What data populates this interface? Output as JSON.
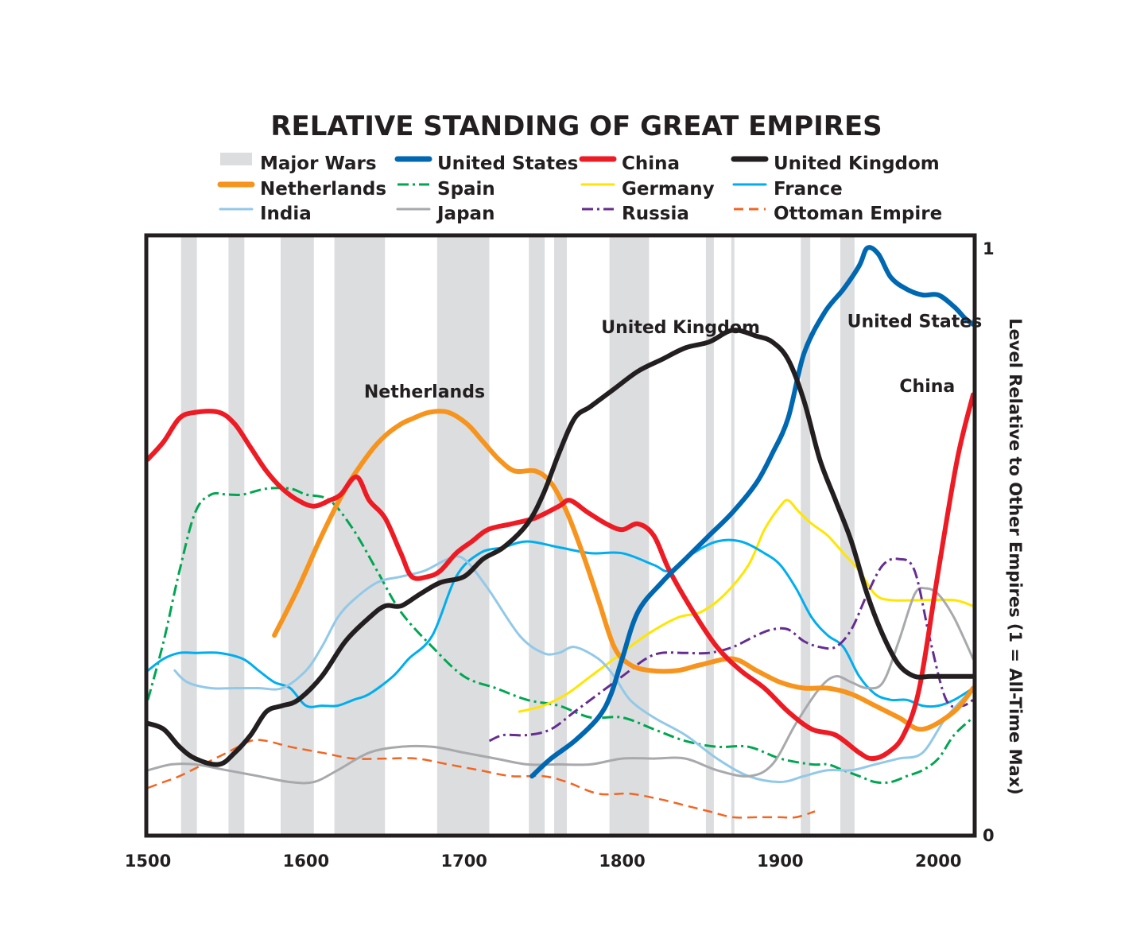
{
  "chart_data": {
    "type": "line",
    "title": "RELATIVE STANDING OF GREAT EMPIRES",
    "ylabel": "Level Relative to Other Empires (1 = All-Time Max)",
    "xlabel": "",
    "xlim": [
      1500,
      2022
    ],
    "ylim": [
      0,
      1
    ],
    "x_ticks": [
      "1500",
      "1600",
      "1700",
      "1800",
      "1900",
      "2000"
    ],
    "y_ticks": [
      "0",
      "1"
    ],
    "legend": {
      "position": "top",
      "major_wars_label": "Major Wars"
    },
    "major_wars": [
      [
        1521,
        1531
      ],
      [
        1551,
        1561
      ],
      [
        1584,
        1605
      ],
      [
        1618,
        1650
      ],
      [
        1683,
        1716
      ],
      [
        1741,
        1751
      ],
      [
        1757,
        1765
      ],
      [
        1792,
        1817
      ],
      [
        1853,
        1858
      ],
      [
        1869,
        1871
      ],
      [
        1913,
        1919
      ],
      [
        1938,
        1947
      ]
    ],
    "series": [
      {
        "name": "Netherlands",
        "color": "#f7941d",
        "style": "solid",
        "width": 6,
        "x": [
          1580,
          1595,
          1610,
          1625,
          1640,
          1650,
          1660,
          1668,
          1678,
          1690,
          1702,
          1712,
          1722,
          1732,
          1745,
          1755,
          1765,
          1775,
          1785,
          1795,
          1805,
          1818,
          1835,
          1850,
          1870,
          1885,
          1900,
          1915,
          1930,
          1945,
          1960,
          1975,
          1990,
          2010,
          2022
        ],
        "y": [
          0.34,
          0.42,
          0.51,
          0.59,
          0.65,
          0.68,
          0.7,
          0.71,
          0.72,
          0.72,
          0.7,
          0.67,
          0.64,
          0.62,
          0.62,
          0.6,
          0.55,
          0.48,
          0.4,
          0.32,
          0.29,
          0.28,
          0.28,
          0.29,
          0.3,
          0.28,
          0.26,
          0.25,
          0.25,
          0.24,
          0.22,
          0.2,
          0.18,
          0.21,
          0.25
        ]
      },
      {
        "name": "China",
        "color": "#ed1c24",
        "style": "solid",
        "width": 6,
        "x": [
          1500,
          1510,
          1520,
          1530,
          1545,
          1555,
          1565,
          1575,
          1585,
          1595,
          1605,
          1615,
          1622,
          1632,
          1640,
          1650,
          1660,
          1667,
          1677,
          1685,
          1695,
          1705,
          1715,
          1730,
          1745,
          1760,
          1767,
          1778,
          1790,
          1800,
          1810,
          1820,
          1830,
          1845,
          1860,
          1875,
          1890,
          1905,
          1920,
          1935,
          1950,
          1958,
          1968,
          1978,
          1988,
          2000,
          2012,
          2022
        ],
        "y": [
          0.64,
          0.67,
          0.71,
          0.72,
          0.72,
          0.7,
          0.66,
          0.62,
          0.59,
          0.57,
          0.56,
          0.57,
          0.58,
          0.61,
          0.57,
          0.54,
          0.48,
          0.44,
          0.44,
          0.45,
          0.48,
          0.5,
          0.52,
          0.53,
          0.54,
          0.56,
          0.57,
          0.55,
          0.53,
          0.52,
          0.53,
          0.51,
          0.45,
          0.38,
          0.32,
          0.28,
          0.25,
          0.21,
          0.18,
          0.17,
          0.14,
          0.13,
          0.14,
          0.17,
          0.25,
          0.45,
          0.64,
          0.75
        ]
      },
      {
        "name": "United States",
        "color": "#0067b1",
        "style": "solid",
        "width": 6,
        "x": [
          1743,
          1755,
          1770,
          1785,
          1793,
          1800,
          1810,
          1825,
          1840,
          1855,
          1870,
          1885,
          1895,
          1905,
          1915,
          1928,
          1940,
          1950,
          1955,
          1962,
          1970,
          1980,
          1990,
          2000,
          2010,
          2017,
          2022
        ],
        "y": [
          0.1,
          0.13,
          0.16,
          0.2,
          0.24,
          0.3,
          0.38,
          0.43,
          0.47,
          0.51,
          0.55,
          0.6,
          0.65,
          0.71,
          0.82,
          0.89,
          0.93,
          0.97,
          1.0,
          0.99,
          0.95,
          0.93,
          0.92,
          0.92,
          0.9,
          0.88,
          0.87
        ]
      },
      {
        "name": "United Kingdom",
        "color": "#231f20",
        "style": "solid",
        "width": 6,
        "x": [
          1500,
          1510,
          1520,
          1530,
          1545,
          1555,
          1565,
          1575,
          1585,
          1595,
          1610,
          1625,
          1640,
          1650,
          1660,
          1672,
          1685,
          1700,
          1712,
          1725,
          1740,
          1750,
          1760,
          1770,
          1780,
          1795,
          1810,
          1825,
          1840,
          1855,
          1870,
          1885,
          1895,
          1905,
          1915,
          1925,
          1935,
          1945,
          1955,
          1965,
          1975,
          1985,
          1995,
          2005,
          2015,
          2022
        ],
        "y": [
          0.19,
          0.18,
          0.15,
          0.13,
          0.12,
          0.14,
          0.17,
          0.21,
          0.22,
          0.23,
          0.27,
          0.33,
          0.37,
          0.39,
          0.39,
          0.41,
          0.43,
          0.44,
          0.47,
          0.49,
          0.53,
          0.58,
          0.65,
          0.71,
          0.73,
          0.76,
          0.79,
          0.81,
          0.83,
          0.84,
          0.86,
          0.85,
          0.84,
          0.81,
          0.74,
          0.64,
          0.57,
          0.5,
          0.41,
          0.34,
          0.29,
          0.27,
          0.27,
          0.27,
          0.27,
          0.27
        ]
      },
      {
        "name": "Spain",
        "color": "#00a651",
        "style": "dashdot",
        "width": 3,
        "x": [
          1500,
          1510,
          1520,
          1530,
          1540,
          1550,
          1560,
          1575,
          1590,
          1600,
          1615,
          1630,
          1645,
          1660,
          1680,
          1700,
          1720,
          1740,
          1760,
          1780,
          1800,
          1820,
          1840,
          1860,
          1880,
          1900,
          1920,
          1930,
          1940,
          1950,
          1960,
          1970,
          1980,
          1990,
          2000,
          2010,
          2022
        ],
        "y": [
          0.23,
          0.33,
          0.45,
          0.55,
          0.58,
          0.58,
          0.58,
          0.59,
          0.59,
          0.58,
          0.57,
          0.52,
          0.45,
          0.38,
          0.32,
          0.27,
          0.25,
          0.23,
          0.22,
          0.2,
          0.2,
          0.18,
          0.16,
          0.15,
          0.15,
          0.13,
          0.12,
          0.12,
          0.11,
          0.1,
          0.09,
          0.09,
          0.1,
          0.11,
          0.13,
          0.17,
          0.2
        ]
      },
      {
        "name": "Germany",
        "color": "#ffe600",
        "style": "solid",
        "width": 3,
        "x": [
          1735,
          1750,
          1765,
          1780,
          1795,
          1815,
          1835,
          1850,
          1865,
          1880,
          1890,
          1900,
          1905,
          1912,
          1920,
          1930,
          1940,
          1950,
          1960,
          1970,
          1990,
          2010,
          2022
        ],
        "y": [
          0.21,
          0.22,
          0.24,
          0.27,
          0.3,
          0.34,
          0.37,
          0.38,
          0.41,
          0.46,
          0.52,
          0.56,
          0.57,
          0.55,
          0.53,
          0.51,
          0.48,
          0.45,
          0.41,
          0.4,
          0.4,
          0.4,
          0.39
        ]
      },
      {
        "name": "France",
        "color": "#00aeef",
        "style": "solid",
        "width": 3,
        "x": [
          1500,
          1510,
          1520,
          1530,
          1545,
          1560,
          1570,
          1580,
          1590,
          1600,
          1610,
          1620,
          1630,
          1640,
          1655,
          1665,
          1680,
          1695,
          1710,
          1725,
          1740,
          1760,
          1780,
          1800,
          1820,
          1830,
          1845,
          1860,
          1875,
          1890,
          1900,
          1910,
          1920,
          1930,
          1940,
          1950,
          1960,
          1970,
          1980,
          1990,
          2000,
          2010,
          2022
        ],
        "y": [
          0.28,
          0.3,
          0.31,
          0.31,
          0.31,
          0.3,
          0.28,
          0.26,
          0.25,
          0.22,
          0.22,
          0.22,
          0.23,
          0.24,
          0.27,
          0.3,
          0.34,
          0.44,
          0.48,
          0.49,
          0.5,
          0.49,
          0.48,
          0.48,
          0.46,
          0.45,
          0.48,
          0.5,
          0.5,
          0.48,
          0.46,
          0.42,
          0.37,
          0.34,
          0.32,
          0.27,
          0.24,
          0.23,
          0.23,
          0.22,
          0.22,
          0.23,
          0.25
        ]
      },
      {
        "name": "India",
        "color": "#92c9e8",
        "style": "solid",
        "width": 3,
        "x": [
          1517,
          1525,
          1540,
          1555,
          1570,
          1585,
          1600,
          1610,
          1620,
          1630,
          1645,
          1660,
          1675,
          1690,
          1700,
          1715,
          1735,
          1750,
          1760,
          1770,
          1785,
          1795,
          1805,
          1820,
          1840,
          1860,
          1880,
          1900,
          1915,
          1930,
          1945,
          1960,
          1975,
          1990,
          2005,
          2022
        ],
        "y": [
          0.28,
          0.26,
          0.25,
          0.25,
          0.25,
          0.25,
          0.28,
          0.32,
          0.37,
          0.4,
          0.43,
          0.44,
          0.45,
          0.47,
          0.47,
          0.42,
          0.34,
          0.31,
          0.31,
          0.32,
          0.3,
          0.27,
          0.23,
          0.2,
          0.17,
          0.13,
          0.1,
          0.09,
          0.1,
          0.11,
          0.11,
          0.12,
          0.13,
          0.14,
          0.2,
          0.25
        ]
      },
      {
        "name": "Japan",
        "color": "#a7a9ac",
        "style": "solid",
        "width": 3,
        "x": [
          1500,
          1515,
          1530,
          1550,
          1570,
          1590,
          1605,
          1620,
          1640,
          1660,
          1680,
          1700,
          1720,
          1740,
          1760,
          1780,
          1800,
          1820,
          1840,
          1860,
          1880,
          1895,
          1910,
          1925,
          1935,
          1945,
          1955,
          1965,
          1975,
          1985,
          1992,
          2000,
          2010,
          2022
        ],
        "y": [
          0.11,
          0.12,
          0.12,
          0.11,
          0.1,
          0.09,
          0.09,
          0.11,
          0.14,
          0.15,
          0.15,
          0.14,
          0.13,
          0.12,
          0.12,
          0.12,
          0.13,
          0.13,
          0.13,
          0.11,
          0.1,
          0.12,
          0.19,
          0.25,
          0.27,
          0.26,
          0.25,
          0.26,
          0.33,
          0.41,
          0.42,
          0.41,
          0.37,
          0.3
        ]
      },
      {
        "name": "Russia",
        "color": "#662d91",
        "style": "dashdot",
        "width": 3,
        "x": [
          1716,
          1725,
          1740,
          1755,
          1770,
          1785,
          1800,
          1815,
          1825,
          1840,
          1855,
          1870,
          1885,
          1895,
          1905,
          1915,
          1925,
          1935,
          1945,
          1955,
          1965,
          1975,
          1985,
          1995,
          2005,
          2015,
          2022
        ],
        "y": [
          0.16,
          0.17,
          0.17,
          0.18,
          0.21,
          0.24,
          0.27,
          0.3,
          0.31,
          0.31,
          0.31,
          0.32,
          0.34,
          0.35,
          0.35,
          0.33,
          0.32,
          0.32,
          0.35,
          0.41,
          0.46,
          0.47,
          0.45,
          0.33,
          0.23,
          0.22,
          0.23
        ]
      },
      {
        "name": "Ottoman Empire",
        "color": "#f26522",
        "style": "dashed",
        "width": 2.5,
        "x": [
          1500,
          1510,
          1520,
          1535,
          1550,
          1565,
          1575,
          1590,
          1610,
          1630,
          1650,
          1670,
          1690,
          1710,
          1730,
          1750,
          1765,
          1785,
          1805,
          1825,
          1840,
          1855,
          1870,
          1885,
          1900,
          1910,
          1922
        ],
        "y": [
          0.08,
          0.09,
          0.1,
          0.12,
          0.14,
          0.16,
          0.16,
          0.15,
          0.14,
          0.13,
          0.13,
          0.13,
          0.12,
          0.11,
          0.1,
          0.1,
          0.09,
          0.07,
          0.07,
          0.06,
          0.05,
          0.04,
          0.03,
          0.03,
          0.03,
          0.03,
          0.04
        ]
      }
    ],
    "annotations": [
      {
        "text": "Netherlands",
        "x": 1675,
        "y": 0.745
      },
      {
        "text": "United Kingdom",
        "x": 1837,
        "y": 0.855
      },
      {
        "text": "United States",
        "x": 1985,
        "y": 0.865
      },
      {
        "text": "China",
        "x": 1993,
        "y": 0.755
      }
    ]
  }
}
